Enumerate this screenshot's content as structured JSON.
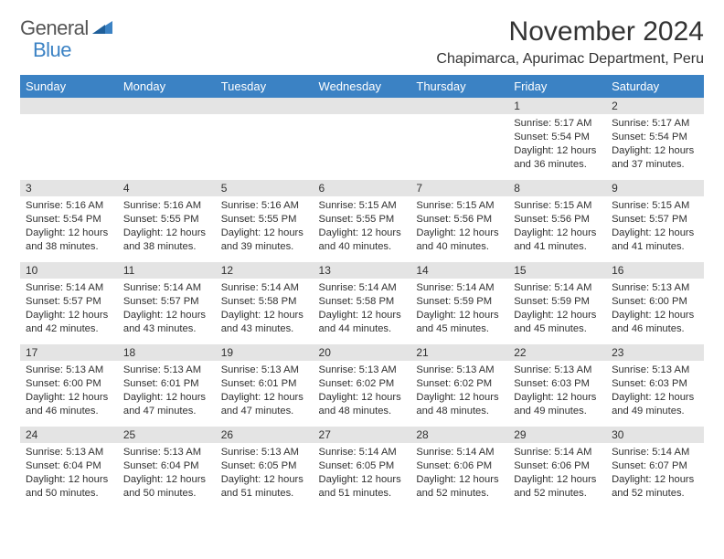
{
  "logo": {
    "text1": "General",
    "text2": "Blue"
  },
  "title": "November 2024",
  "location": "Chapimarca, Apurimac Department, Peru",
  "colors": {
    "header_bg": "#3b82c4",
    "header_fg": "#ffffff",
    "daynum_bg": "#e4e4e4",
    "text": "#303030",
    "page_bg": "#ffffff"
  },
  "typography": {
    "title_fontsize": 30,
    "location_fontsize": 16,
    "weekday_fontsize": 13,
    "daynum_fontsize": 12,
    "detail_fontsize": 11.2
  },
  "weekdays": [
    "Sunday",
    "Monday",
    "Tuesday",
    "Wednesday",
    "Thursday",
    "Friday",
    "Saturday"
  ],
  "weeks": [
    [
      null,
      null,
      null,
      null,
      null,
      {
        "n": "1",
        "sr": "Sunrise: 5:17 AM",
        "ss": "Sunset: 5:54 PM",
        "d1": "Daylight: 12 hours",
        "d2": "and 36 minutes."
      },
      {
        "n": "2",
        "sr": "Sunrise: 5:17 AM",
        "ss": "Sunset: 5:54 PM",
        "d1": "Daylight: 12 hours",
        "d2": "and 37 minutes."
      }
    ],
    [
      {
        "n": "3",
        "sr": "Sunrise: 5:16 AM",
        "ss": "Sunset: 5:54 PM",
        "d1": "Daylight: 12 hours",
        "d2": "and 38 minutes."
      },
      {
        "n": "4",
        "sr": "Sunrise: 5:16 AM",
        "ss": "Sunset: 5:55 PM",
        "d1": "Daylight: 12 hours",
        "d2": "and 38 minutes."
      },
      {
        "n": "5",
        "sr": "Sunrise: 5:16 AM",
        "ss": "Sunset: 5:55 PM",
        "d1": "Daylight: 12 hours",
        "d2": "and 39 minutes."
      },
      {
        "n": "6",
        "sr": "Sunrise: 5:15 AM",
        "ss": "Sunset: 5:55 PM",
        "d1": "Daylight: 12 hours",
        "d2": "and 40 minutes."
      },
      {
        "n": "7",
        "sr": "Sunrise: 5:15 AM",
        "ss": "Sunset: 5:56 PM",
        "d1": "Daylight: 12 hours",
        "d2": "and 40 minutes."
      },
      {
        "n": "8",
        "sr": "Sunrise: 5:15 AM",
        "ss": "Sunset: 5:56 PM",
        "d1": "Daylight: 12 hours",
        "d2": "and 41 minutes."
      },
      {
        "n": "9",
        "sr": "Sunrise: 5:15 AM",
        "ss": "Sunset: 5:57 PM",
        "d1": "Daylight: 12 hours",
        "d2": "and 41 minutes."
      }
    ],
    [
      {
        "n": "10",
        "sr": "Sunrise: 5:14 AM",
        "ss": "Sunset: 5:57 PM",
        "d1": "Daylight: 12 hours",
        "d2": "and 42 minutes."
      },
      {
        "n": "11",
        "sr": "Sunrise: 5:14 AM",
        "ss": "Sunset: 5:57 PM",
        "d1": "Daylight: 12 hours",
        "d2": "and 43 minutes."
      },
      {
        "n": "12",
        "sr": "Sunrise: 5:14 AM",
        "ss": "Sunset: 5:58 PM",
        "d1": "Daylight: 12 hours",
        "d2": "and 43 minutes."
      },
      {
        "n": "13",
        "sr": "Sunrise: 5:14 AM",
        "ss": "Sunset: 5:58 PM",
        "d1": "Daylight: 12 hours",
        "d2": "and 44 minutes."
      },
      {
        "n": "14",
        "sr": "Sunrise: 5:14 AM",
        "ss": "Sunset: 5:59 PM",
        "d1": "Daylight: 12 hours",
        "d2": "and 45 minutes."
      },
      {
        "n": "15",
        "sr": "Sunrise: 5:14 AM",
        "ss": "Sunset: 5:59 PM",
        "d1": "Daylight: 12 hours",
        "d2": "and 45 minutes."
      },
      {
        "n": "16",
        "sr": "Sunrise: 5:13 AM",
        "ss": "Sunset: 6:00 PM",
        "d1": "Daylight: 12 hours",
        "d2": "and 46 minutes."
      }
    ],
    [
      {
        "n": "17",
        "sr": "Sunrise: 5:13 AM",
        "ss": "Sunset: 6:00 PM",
        "d1": "Daylight: 12 hours",
        "d2": "and 46 minutes."
      },
      {
        "n": "18",
        "sr": "Sunrise: 5:13 AM",
        "ss": "Sunset: 6:01 PM",
        "d1": "Daylight: 12 hours",
        "d2": "and 47 minutes."
      },
      {
        "n": "19",
        "sr": "Sunrise: 5:13 AM",
        "ss": "Sunset: 6:01 PM",
        "d1": "Daylight: 12 hours",
        "d2": "and 47 minutes."
      },
      {
        "n": "20",
        "sr": "Sunrise: 5:13 AM",
        "ss": "Sunset: 6:02 PM",
        "d1": "Daylight: 12 hours",
        "d2": "and 48 minutes."
      },
      {
        "n": "21",
        "sr": "Sunrise: 5:13 AM",
        "ss": "Sunset: 6:02 PM",
        "d1": "Daylight: 12 hours",
        "d2": "and 48 minutes."
      },
      {
        "n": "22",
        "sr": "Sunrise: 5:13 AM",
        "ss": "Sunset: 6:03 PM",
        "d1": "Daylight: 12 hours",
        "d2": "and 49 minutes."
      },
      {
        "n": "23",
        "sr": "Sunrise: 5:13 AM",
        "ss": "Sunset: 6:03 PM",
        "d1": "Daylight: 12 hours",
        "d2": "and 49 minutes."
      }
    ],
    [
      {
        "n": "24",
        "sr": "Sunrise: 5:13 AM",
        "ss": "Sunset: 6:04 PM",
        "d1": "Daylight: 12 hours",
        "d2": "and 50 minutes."
      },
      {
        "n": "25",
        "sr": "Sunrise: 5:13 AM",
        "ss": "Sunset: 6:04 PM",
        "d1": "Daylight: 12 hours",
        "d2": "and 50 minutes."
      },
      {
        "n": "26",
        "sr": "Sunrise: 5:13 AM",
        "ss": "Sunset: 6:05 PM",
        "d1": "Daylight: 12 hours",
        "d2": "and 51 minutes."
      },
      {
        "n": "27",
        "sr": "Sunrise: 5:14 AM",
        "ss": "Sunset: 6:05 PM",
        "d1": "Daylight: 12 hours",
        "d2": "and 51 minutes."
      },
      {
        "n": "28",
        "sr": "Sunrise: 5:14 AM",
        "ss": "Sunset: 6:06 PM",
        "d1": "Daylight: 12 hours",
        "d2": "and 52 minutes."
      },
      {
        "n": "29",
        "sr": "Sunrise: 5:14 AM",
        "ss": "Sunset: 6:06 PM",
        "d1": "Daylight: 12 hours",
        "d2": "and 52 minutes."
      },
      {
        "n": "30",
        "sr": "Sunrise: 5:14 AM",
        "ss": "Sunset: 6:07 PM",
        "d1": "Daylight: 12 hours",
        "d2": "and 52 minutes."
      }
    ]
  ]
}
